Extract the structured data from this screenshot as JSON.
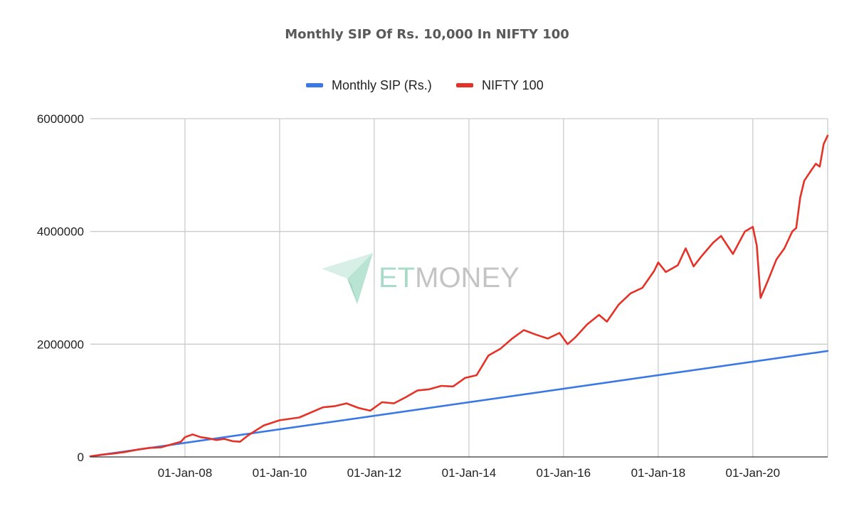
{
  "chart_data": {
    "type": "line",
    "title": "Monthly SIP Of Rs. 10,000 In NIFTY 100",
    "xlabel": "",
    "ylabel": "",
    "ylim": [
      0,
      6000000
    ],
    "y_ticks": [
      "0",
      "2000000",
      "4000000",
      "6000000"
    ],
    "x_tick_labels": [
      "01-Jan-08",
      "01-Jan-10",
      "01-Jan-12",
      "01-Jan-14",
      "01-Jan-16",
      "01-Jan-18",
      "01-Jan-20"
    ],
    "x_tick_dates": [
      "2008-01-01",
      "2010-01-01",
      "2012-01-01",
      "2014-01-01",
      "2016-01-01",
      "2018-01-01",
      "2020-01-01"
    ],
    "x_range": [
      "2006-01-01",
      "2021-08-01"
    ],
    "grid": true,
    "legend_position": "top",
    "series": [
      {
        "name": "Monthly SIP (Rs.)",
        "color": "#3b78e7",
        "points": [
          [
            "2006-01-01",
            10000
          ],
          [
            "2021-08-01",
            1880000
          ]
        ]
      },
      {
        "name": "NIFTY 100",
        "color": "#e53227",
        "points": [
          [
            "2006-01-01",
            10000
          ],
          [
            "2006-04-01",
            40000
          ],
          [
            "2006-07-01",
            60000
          ],
          [
            "2006-10-01",
            90000
          ],
          [
            "2007-01-01",
            130000
          ],
          [
            "2007-04-01",
            160000
          ],
          [
            "2007-07-01",
            170000
          ],
          [
            "2007-10-01",
            230000
          ],
          [
            "2007-12-01",
            270000
          ],
          [
            "2008-01-01",
            350000
          ],
          [
            "2008-03-01",
            400000
          ],
          [
            "2008-05-01",
            350000
          ],
          [
            "2008-07-01",
            330000
          ],
          [
            "2008-09-01",
            300000
          ],
          [
            "2008-11-01",
            320000
          ],
          [
            "2009-01-01",
            280000
          ],
          [
            "2009-03-01",
            270000
          ],
          [
            "2009-05-01",
            380000
          ],
          [
            "2009-07-01",
            470000
          ],
          [
            "2009-09-01",
            560000
          ],
          [
            "2010-01-01",
            650000
          ],
          [
            "2010-06-01",
            700000
          ],
          [
            "2010-12-01",
            880000
          ],
          [
            "2011-03-01",
            900000
          ],
          [
            "2011-06-01",
            950000
          ],
          [
            "2011-09-01",
            870000
          ],
          [
            "2011-12-01",
            820000
          ],
          [
            "2012-03-01",
            970000
          ],
          [
            "2012-06-01",
            950000
          ],
          [
            "2012-09-01",
            1060000
          ],
          [
            "2012-12-01",
            1180000
          ],
          [
            "2013-03-01",
            1200000
          ],
          [
            "2013-06-01",
            1260000
          ],
          [
            "2013-09-01",
            1250000
          ],
          [
            "2013-12-01",
            1400000
          ],
          [
            "2014-03-01",
            1450000
          ],
          [
            "2014-06-01",
            1800000
          ],
          [
            "2014-09-01",
            1920000
          ],
          [
            "2014-12-01",
            2100000
          ],
          [
            "2015-03-01",
            2250000
          ],
          [
            "2015-06-01",
            2170000
          ],
          [
            "2015-09-01",
            2100000
          ],
          [
            "2015-12-01",
            2200000
          ],
          [
            "2016-02-01",
            2000000
          ],
          [
            "2016-04-01",
            2120000
          ],
          [
            "2016-07-01",
            2350000
          ],
          [
            "2016-10-01",
            2520000
          ],
          [
            "2016-12-01",
            2400000
          ],
          [
            "2017-03-01",
            2700000
          ],
          [
            "2017-06-01",
            2900000
          ],
          [
            "2017-09-01",
            3000000
          ],
          [
            "2017-12-01",
            3300000
          ],
          [
            "2018-01-01",
            3450000
          ],
          [
            "2018-03-01",
            3280000
          ],
          [
            "2018-06-01",
            3400000
          ],
          [
            "2018-08-01",
            3700000
          ],
          [
            "2018-10-01",
            3380000
          ],
          [
            "2018-12-01",
            3560000
          ],
          [
            "2019-03-01",
            3800000
          ],
          [
            "2019-05-01",
            3920000
          ],
          [
            "2019-08-01",
            3600000
          ],
          [
            "2019-11-01",
            4000000
          ],
          [
            "2020-01-01",
            4080000
          ],
          [
            "2020-02-01",
            3750000
          ],
          [
            "2020-03-01",
            2820000
          ],
          [
            "2020-05-01",
            3150000
          ],
          [
            "2020-07-01",
            3500000
          ],
          [
            "2020-09-01",
            3700000
          ],
          [
            "2020-11-01",
            4000000
          ],
          [
            "2020-12-01",
            4060000
          ],
          [
            "2021-01-01",
            4600000
          ],
          [
            "2021-02-01",
            4900000
          ],
          [
            "2021-04-01",
            5100000
          ],
          [
            "2021-05-01",
            5200000
          ],
          [
            "2021-06-01",
            5150000
          ],
          [
            "2021-07-01",
            5550000
          ],
          [
            "2021-08-01",
            5700000
          ]
        ]
      }
    ]
  },
  "watermark": {
    "brand_et": "ET",
    "brand_money": "MONEY",
    "icon": "paper-plane-icon",
    "color_et": "#a8dcc8",
    "color_money": "#c4c4c4"
  }
}
